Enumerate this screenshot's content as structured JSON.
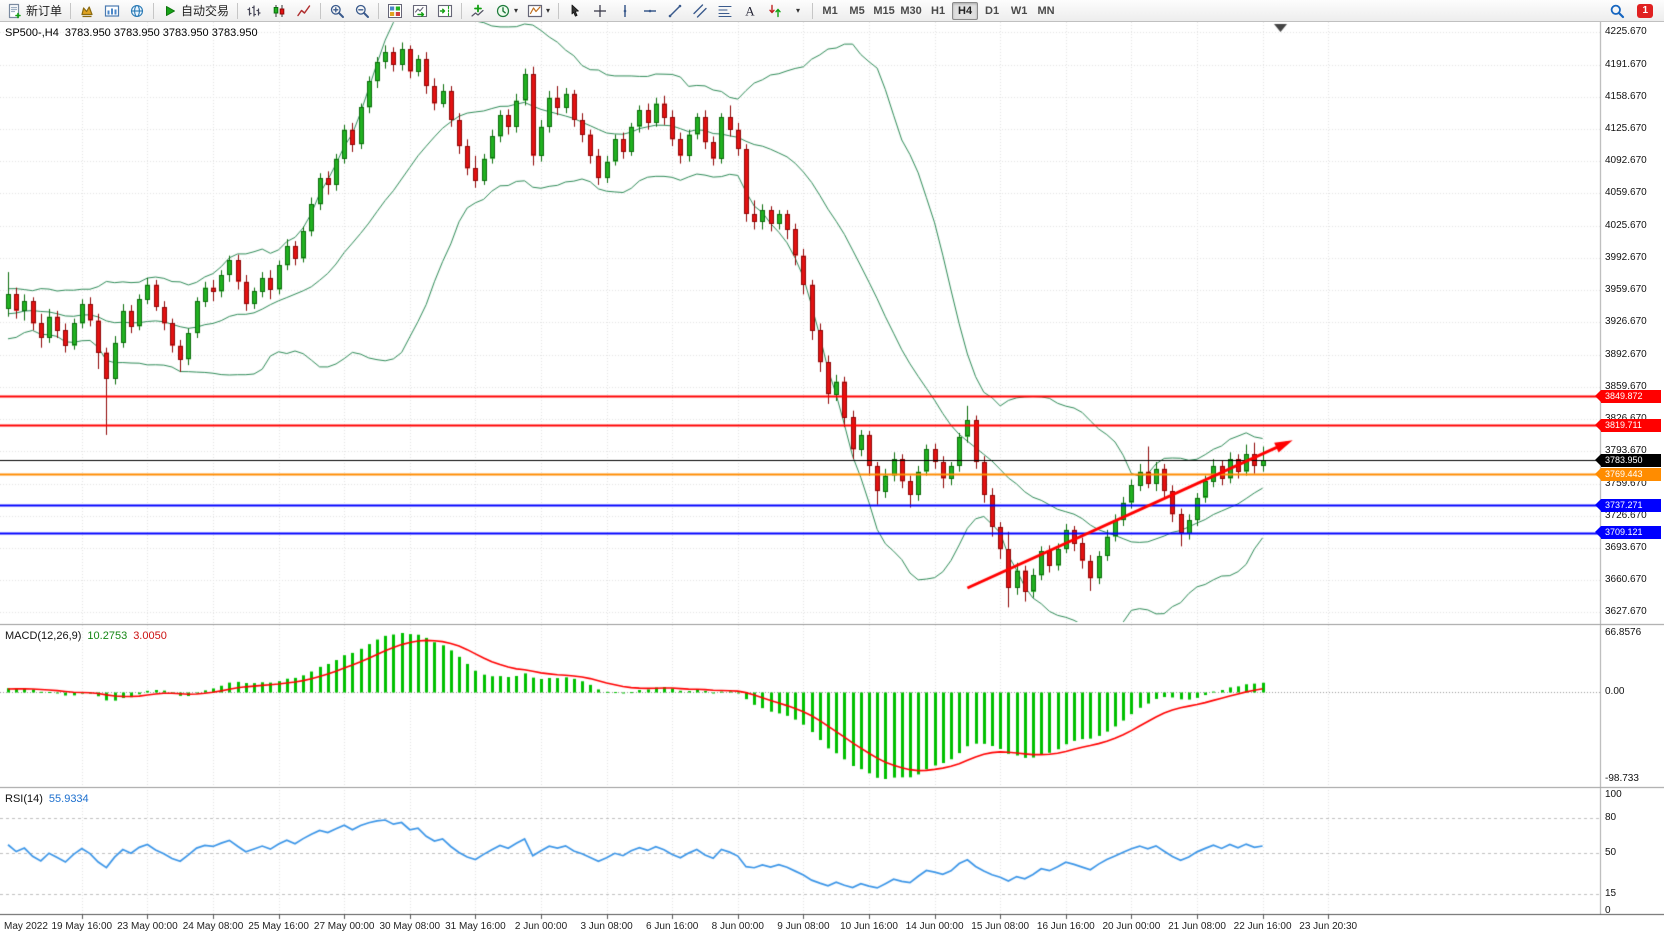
{
  "toolbar": {
    "new_order_label": "新订单",
    "autotrading_label": "自动交易",
    "timeframes": [
      "M1",
      "M5",
      "M15",
      "M30",
      "H1",
      "H4",
      "D1",
      "W1",
      "MN"
    ],
    "active_timeframe": "H4",
    "notification_count": "1",
    "icons": [
      "new-order",
      "expert-advisors",
      "chart-profiles",
      "metaeditor",
      "autotrading-play",
      "bar-chart",
      "candlestick-chart",
      "line-chart",
      "zoom-in",
      "zoom-out",
      "tile-windows",
      "auto-scroll",
      "chart-shift",
      "indicators-add",
      "periods-clock",
      "templates",
      "cursor",
      "crosshair",
      "vertical-line",
      "horizontal-line",
      "trendline",
      "channel",
      "fibonacci",
      "text",
      "arrows",
      "objects-dropdown",
      "search",
      "notification-badge"
    ]
  },
  "chart": {
    "title": "SP500-,H4  3783.950 3783.950 3783.950 3783.950",
    "symbol": "SP500-",
    "period": "H4",
    "price_axis": [
      "4225.670",
      "4191.670",
      "4158.670",
      "4125.670",
      "4092.670",
      "4059.670",
      "4025.670",
      "3992.670",
      "3959.670",
      "3926.670",
      "3892.670",
      "3859.670",
      "3826.670",
      "3793.670",
      "3759.670",
      "3726.670",
      "3693.670",
      "3660.670",
      "3627.670"
    ],
    "levels": [
      {
        "price": 3849.872,
        "label": "3849.872",
        "color": "#FF0000",
        "current": false
      },
      {
        "price": 3819.711,
        "label": "3819.711",
        "color": "#FF0000",
        "current": false
      },
      {
        "price": 3783.95,
        "label": "3783.950",
        "color": "#000000",
        "current": true
      },
      {
        "price": 3769.443,
        "label": "3769.443",
        "color": "#FF8C00",
        "current": false
      },
      {
        "price": 3737.271,
        "label": "3737.271",
        "color": "#0000FF",
        "current": false
      },
      {
        "price": 3709.121,
        "label": "3709.121",
        "color": "#0000FF",
        "current": false
      }
    ],
    "trend_arrow": {
      "from_index": 117,
      "from_price": 3652,
      "to_index": 156,
      "to_price": 3802,
      "color": "#FF0000"
    }
  },
  "macd": {
    "name": "MACD(12,26,9)",
    "value_main": "10.2753",
    "value_signal": "3.0050",
    "axis": [
      "66.8576",
      "0.00",
      "-98.733"
    ],
    "axis_values": [
      66.8576,
      0,
      -98.733
    ]
  },
  "rsi": {
    "name": "RSI(14)",
    "value": "55.9334",
    "axis": [
      "100",
      "80",
      "50",
      "15",
      "0"
    ],
    "axis_values": [
      100,
      80,
      50,
      15,
      0
    ]
  },
  "time_axis": [
    "May 2022",
    "19 May 16:00",
    "23 May 00:00",
    "24 May 08:00",
    "25 May 16:00",
    "27 May 00:00",
    "30 May 08:00",
    "31 May 16:00",
    "2 Jun 00:00",
    "3 Jun 08:00",
    "6 Jun 16:00",
    "8 Jun 00:00",
    "9 Jun 08:00",
    "10 Jun 16:00",
    "14 Jun 00:00",
    "15 Jun 08:00",
    "16 Jun 16:00",
    "20 Jun 00:00",
    "21 Jun 08:00",
    "22 Jun 16:00",
    "23 Jun 20:30"
  ],
  "chart_data": {
    "type": "candlestick",
    "symbol": "SP500-",
    "timeframe": "H4",
    "visible_price_range": [
      3627.67,
      4225.67
    ],
    "colors": {
      "up": "#21B121",
      "down": "#E31212",
      "up_border": "#0B6E0B",
      "down_border": "#8F0606",
      "grid": "#E3E3E3",
      "background": "#FFFFFF"
    },
    "warmup_closes": [
      3920,
      3935,
      3948,
      3940,
      3925,
      3910,
      3918,
      3930,
      3945,
      3952,
      3938,
      3922,
      3908,
      3915,
      3928,
      3942,
      3955,
      3948,
      3932,
      3918,
      3925,
      3938,
      3950,
      3942,
      3928,
      3935,
      3947,
      3940,
      3930,
      3942
    ],
    "ohlc": [
      [
        3940,
        3978,
        3932,
        3955
      ],
      [
        3955,
        3962,
        3930,
        3938
      ],
      [
        3938,
        3955,
        3928,
        3948
      ],
      [
        3948,
        3952,
        3918,
        3925
      ],
      [
        3925,
        3935,
        3900,
        3910
      ],
      [
        3910,
        3940,
        3905,
        3932
      ],
      [
        3932,
        3938,
        3910,
        3918
      ],
      [
        3918,
        3925,
        3895,
        3902
      ],
      [
        3902,
        3930,
        3898,
        3925
      ],
      [
        3925,
        3950,
        3920,
        3945
      ],
      [
        3945,
        3952,
        3922,
        3928
      ],
      [
        3928,
        3935,
        3878,
        3895
      ],
      [
        3895,
        3900,
        3810,
        3868
      ],
      [
        3868,
        3912,
        3862,
        3905
      ],
      [
        3905,
        3945,
        3900,
        3938
      ],
      [
        3938,
        3944,
        3915,
        3922
      ],
      [
        3922,
        3955,
        3918,
        3950
      ],
      [
        3950,
        3972,
        3945,
        3965
      ],
      [
        3965,
        3970,
        3938,
        3942
      ],
      [
        3942,
        3948,
        3918,
        3925
      ],
      [
        3925,
        3930,
        3895,
        3902
      ],
      [
        3902,
        3908,
        3875,
        3888
      ],
      [
        3888,
        3920,
        3882,
        3915
      ],
      [
        3915,
        3952,
        3910,
        3948
      ],
      [
        3948,
        3968,
        3942,
        3962
      ],
      [
        3962,
        3970,
        3948,
        3958
      ],
      [
        3958,
        3980,
        3952,
        3975
      ],
      [
        3975,
        3995,
        3968,
        3990
      ],
      [
        3990,
        3996,
        3960,
        3968
      ],
      [
        3968,
        3975,
        3938,
        3945
      ],
      [
        3945,
        3962,
        3940,
        3958
      ],
      [
        3958,
        3978,
        3952,
        3972
      ],
      [
        3972,
        3980,
        3950,
        3960
      ],
      [
        3960,
        3990,
        3955,
        3985
      ],
      [
        3985,
        4012,
        3980,
        4005
      ],
      [
        4005,
        4010,
        3985,
        3992
      ],
      [
        3992,
        4025,
        3988,
        4020
      ],
      [
        4020,
        4055,
        4015,
        4048
      ],
      [
        4048,
        4080,
        4042,
        4075
      ],
      [
        4075,
        4082,
        4058,
        4068
      ],
      [
        4068,
        4100,
        4062,
        4095
      ],
      [
        4095,
        4130,
        4090,
        4125
      ],
      [
        4125,
        4132,
        4102,
        4110
      ],
      [
        4110,
        4152,
        4105,
        4148
      ],
      [
        4148,
        4180,
        4142,
        4175
      ],
      [
        4175,
        4200,
        4168,
        4195
      ],
      [
        4195,
        4212,
        4188,
        4205
      ],
      [
        4205,
        4210,
        4185,
        4192
      ],
      [
        4192,
        4215,
        4186,
        4208
      ],
      [
        4208,
        4212,
        4178,
        4185
      ],
      [
        4185,
        4202,
        4180,
        4198
      ],
      [
        4198,
        4205,
        4162,
        4170
      ],
      [
        4170,
        4178,
        4145,
        4152
      ],
      [
        4152,
        4172,
        4148,
        4165
      ],
      [
        4165,
        4170,
        4128,
        4135
      ],
      [
        4135,
        4142,
        4100,
        4108
      ],
      [
        4108,
        4115,
        4078,
        4085
      ],
      [
        4085,
        4098,
        4065,
        4072
      ],
      [
        4072,
        4100,
        4068,
        4095
      ],
      [
        4095,
        4125,
        4090,
        4118
      ],
      [
        4118,
        4145,
        4112,
        4140
      ],
      [
        4140,
        4146,
        4120,
        4128
      ],
      [
        4128,
        4162,
        4122,
        4155
      ],
      [
        4155,
        4188,
        4150,
        4182
      ],
      [
        4182,
        4190,
        4088,
        4098
      ],
      [
        4098,
        4135,
        4092,
        4128
      ],
      [
        4128,
        4165,
        4122,
        4158
      ],
      [
        4158,
        4170,
        4140,
        4148
      ],
      [
        4148,
        4168,
        4142,
        4162
      ],
      [
        4162,
        4166,
        4128,
        4135
      ],
      [
        4135,
        4142,
        4112,
        4120
      ],
      [
        4120,
        4125,
        4090,
        4098
      ],
      [
        4098,
        4105,
        4068,
        4075
      ],
      [
        4075,
        4098,
        4070,
        4092
      ],
      [
        4092,
        4120,
        4088,
        4115
      ],
      [
        4115,
        4122,
        4095,
        4102
      ],
      [
        4102,
        4132,
        4098,
        4128
      ],
      [
        4128,
        4150,
        4122,
        4145
      ],
      [
        4145,
        4152,
        4125,
        4132
      ],
      [
        4132,
        4158,
        4128,
        4152
      ],
      [
        4152,
        4160,
        4130,
        4138
      ],
      [
        4138,
        4145,
        4108,
        4115
      ],
      [
        4115,
        4122,
        4090,
        4098
      ],
      [
        4098,
        4125,
        4092,
        4120
      ],
      [
        4120,
        4142,
        4115,
        4138
      ],
      [
        4138,
        4145,
        4105,
        4112
      ],
      [
        4112,
        4118,
        4088,
        4095
      ],
      [
        4095,
        4142,
        4090,
        4138
      ],
      [
        4138,
        4150,
        4118,
        4125
      ],
      [
        4125,
        4132,
        4098,
        4105
      ],
      [
        4105,
        4110,
        4030,
        4038
      ],
      [
        4038,
        4052,
        4022,
        4030
      ],
      [
        4030,
        4048,
        4022,
        4042
      ],
      [
        4042,
        4046,
        4020,
        4028
      ],
      [
        4028,
        4042,
        4022,
        4038
      ],
      [
        4038,
        4042,
        4012,
        4022
      ],
      [
        4022,
        4028,
        3985,
        3995
      ],
      [
        3995,
        4002,
        3955,
        3965
      ],
      [
        3965,
        3970,
        3908,
        3918
      ],
      [
        3918,
        3925,
        3875,
        3885
      ],
      [
        3885,
        3892,
        3842,
        3852
      ],
      [
        3852,
        3872,
        3845,
        3865
      ],
      [
        3865,
        3870,
        3818,
        3828
      ],
      [
        3828,
        3835,
        3785,
        3795
      ],
      [
        3795,
        3815,
        3788,
        3810
      ],
      [
        3810,
        3814,
        3768,
        3778
      ],
      [
        3778,
        3782,
        3738,
        3752
      ],
      [
        3752,
        3775,
        3745,
        3768
      ],
      [
        3768,
        3792,
        3762,
        3785
      ],
      [
        3785,
        3790,
        3755,
        3762
      ],
      [
        3762,
        3768,
        3735,
        3748
      ],
      [
        3748,
        3778,
        3742,
        3772
      ],
      [
        3772,
        3800,
        3768,
        3795
      ],
      [
        3795,
        3801,
        3775,
        3782
      ],
      [
        3782,
        3788,
        3755,
        3765
      ],
      [
        3765,
        3782,
        3758,
        3778
      ],
      [
        3778,
        3812,
        3772,
        3808
      ],
      [
        3808,
        3840,
        3802,
        3825
      ],
      [
        3825,
        3830,
        3775,
        3782
      ],
      [
        3782,
        3788,
        3740,
        3748
      ],
      [
        3748,
        3755,
        3705,
        3715
      ],
      [
        3715,
        3720,
        3682,
        3692
      ],
      [
        3692,
        3710,
        3632,
        3652
      ],
      [
        3652,
        3678,
        3645,
        3670
      ],
      [
        3670,
        3675,
        3638,
        3648
      ],
      [
        3648,
        3672,
        3642,
        3665
      ],
      [
        3665,
        3695,
        3660,
        3690
      ],
      [
        3690,
        3696,
        3668,
        3675
      ],
      [
        3675,
        3698,
        3670,
        3692
      ],
      [
        3692,
        3718,
        3688,
        3712
      ],
      [
        3712,
        3716,
        3690,
        3698
      ],
      [
        3698,
        3704,
        3672,
        3680
      ],
      [
        3680,
        3686,
        3649,
        3662
      ],
      [
        3662,
        3690,
        3656,
        3685
      ],
      [
        3685,
        3712,
        3680,
        3705
      ],
      [
        3705,
        3728,
        3700,
        3722
      ],
      [
        3722,
        3746,
        3716,
        3740
      ],
      [
        3740,
        3764,
        3734,
        3758
      ],
      [
        3758,
        3780,
        3752,
        3772
      ],
      [
        3772,
        3798,
        3755,
        3760
      ],
      [
        3760,
        3782,
        3752,
        3775
      ],
      [
        3775,
        3780,
        3745,
        3752
      ],
      [
        3752,
        3758,
        3720,
        3728
      ],
      [
        3728,
        3734,
        3695,
        3708
      ],
      [
        3708,
        3728,
        3702,
        3722
      ],
      [
        3722,
        3750,
        3716,
        3745
      ],
      [
        3745,
        3768,
        3740,
        3762
      ],
      [
        3762,
        3785,
        3756,
        3778
      ],
      [
        3778,
        3784,
        3758,
        3765
      ],
      [
        3765,
        3792,
        3760,
        3785
      ],
      [
        3785,
        3790,
        3765,
        3772
      ],
      [
        3772,
        3800,
        3768,
        3790
      ],
      [
        3790,
        3802,
        3770,
        3778
      ],
      [
        3778,
        3798,
        3772,
        3783.95
      ]
    ],
    "overlays": [
      {
        "name": "Bollinger Bands",
        "period": 20,
        "deviation": 2,
        "color": "#2E8B57"
      }
    ],
    "indicators": [
      {
        "name": "MACD",
        "params": [
          12,
          26,
          9
        ],
        "values_current": [
          10.2753,
          3.005
        ],
        "range": [
          -98.733,
          66.8576
        ],
        "histogram_color": "#00C000",
        "signal_color": "#FF0000"
      },
      {
        "name": "RSI",
        "params": [
          14
        ],
        "value_current": 55.9334,
        "range": [
          0,
          100
        ],
        "levels": [
          80,
          50,
          15
        ],
        "color": "#3C96E8"
      }
    ]
  }
}
